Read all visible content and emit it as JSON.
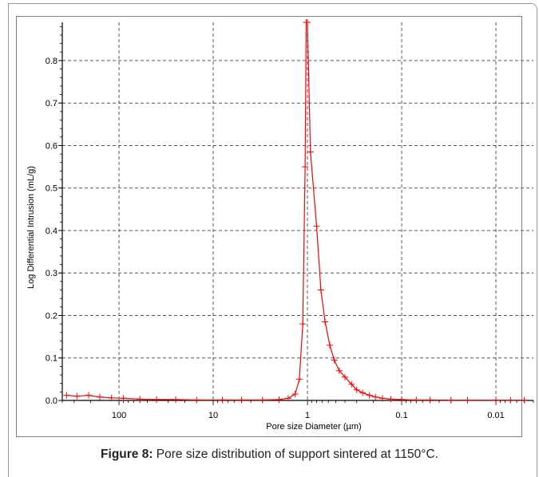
{
  "chart_data": {
    "type": "line",
    "title": "",
    "xlabel": "Pore size Diameter (µm)",
    "ylabel": "Log Differential Intrusion (mL/g)",
    "x_scale": "log",
    "x_reversed": true,
    "xlim": [
      400,
      0.004
    ],
    "ylim": [
      0,
      0.9
    ],
    "xticks": [
      100,
      10,
      1,
      0.1,
      0.01
    ],
    "xtick_labels": [
      "100",
      "10",
      "1",
      "0.1",
      "0.01"
    ],
    "yticks": [
      0.0,
      0.1,
      0.2,
      0.3,
      0.4,
      0.5,
      0.6,
      0.7,
      0.8
    ],
    "ytick_labels": [
      "0.0",
      "0.1",
      "0.2",
      "0.3",
      "0.4",
      "0.5",
      "0.6",
      "0.7",
      "0.8"
    ],
    "grid": true,
    "colors": {
      "series": "#ff0000",
      "grid": "#555555"
    },
    "series": [
      {
        "name": "",
        "marker": "plus",
        "x": [
          360,
          280,
          210,
          160,
          120,
          90,
          60,
          40,
          25,
          15,
          8,
          5,
          3,
          2,
          1.6,
          1.35,
          1.22,
          1.12,
          1.06,
          1.03,
          1.0,
          0.93,
          0.8,
          0.72,
          0.65,
          0.58,
          0.52,
          0.46,
          0.4,
          0.34,
          0.3,
          0.26,
          0.22,
          0.19,
          0.16,
          0.13,
          0.1,
          0.07,
          0.05,
          0.03,
          0.02,
          0.01,
          0.007,
          0.005
        ],
        "y": [
          0.012,
          0.01,
          0.012,
          0.008,
          0.006,
          0.005,
          0.003,
          0.002,
          0.002,
          0.001,
          0.001,
          0.001,
          0.001,
          0.002,
          0.005,
          0.015,
          0.05,
          0.18,
          0.55,
          0.9,
          0.9,
          0.585,
          0.41,
          0.26,
          0.185,
          0.13,
          0.095,
          0.07,
          0.055,
          0.038,
          0.025,
          0.018,
          0.012,
          0.008,
          0.005,
          0.003,
          0.002,
          0.001,
          0.001,
          0.0005,
          0.0005,
          0.0005,
          0.0005,
          0.0005
        ]
      }
    ]
  },
  "caption": {
    "label": "Figure 8:",
    "text": " Pore size distribution of support sintered at 1150°C."
  }
}
